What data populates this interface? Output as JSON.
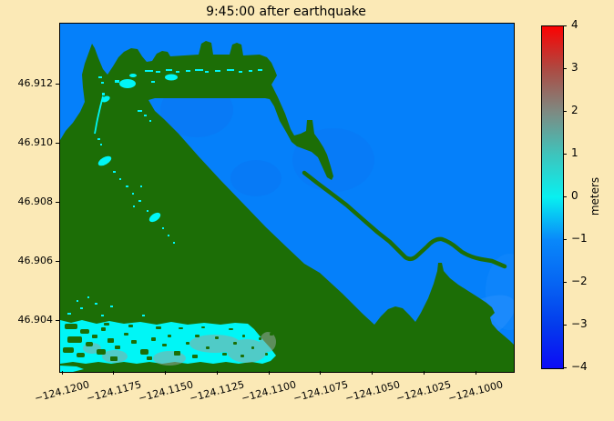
{
  "title": "9:45:00 after earthquake",
  "axes": {
    "x_tick_labels": [
      "−124.1200",
      "−124.1175",
      "−124.1150",
      "−124.1125",
      "−124.1100",
      "−124.1075",
      "−124.1050",
      "−124.1025",
      "−124.1000"
    ],
    "y_tick_labels": [
      "46.912",
      "46.910",
      "46.908",
      "46.906",
      "46.904"
    ]
  },
  "colorbar": {
    "tick_labels": [
      "4",
      "3",
      "2",
      "1",
      "0",
      "−1",
      "−2",
      "−3",
      "−4"
    ],
    "label": "meters"
  },
  "colors": {
    "background": "#fbe9b6",
    "ocean": "#0580fa",
    "land": "#1c6e06",
    "flood_cyan": "#00f6f6",
    "flood_gray": "#93a8a2",
    "colorbar_top_red": "#fb0202",
    "colorbar_mid_gray": "#7e8a82",
    "colorbar_zero_cyan": "#08f0f0",
    "colorbar_bottom_blue": "#0c0cf6"
  },
  "chart_data": {
    "type": "heatmap",
    "title": "9:45:00 after earthquake",
    "xlabel": "",
    "ylabel": "",
    "x_tick_labels": [
      "−124.1200",
      "−124.1175",
      "−124.1150",
      "−124.1125",
      "−124.1100",
      "−124.1075",
      "−124.1050",
      "−124.1025",
      "−124.1000"
    ],
    "y_tick_labels": [
      "46.912",
      "46.910",
      "46.908",
      "46.906",
      "46.904"
    ],
    "x_range": [
      -124.1202,
      -124.0982
    ],
    "y_range": [
      46.9022,
      46.9142
    ],
    "grid": false,
    "legend_position": "right-colorbar",
    "colorbar": {
      "label": "meters",
      "min": -4,
      "max": 4,
      "tick_step": 1
    },
    "value_encoding": {
      "bright_blue": "water surface approx -1 to -2 m",
      "cyan": "shallow / flooded cells approx 0 m",
      "dark_green": "dry land (masked)",
      "red_end": "+4 m",
      "blue_end": "-4 m"
    },
    "features": [
      "coastal spit at upper left with pointed arm and shore bar with four groin bumps along the top",
      "harbor basin of open water in the center-right bounded by a diagonal shoreline",
      "thin curved jetty/breakwater arcing through the harbor toward the southeast",
      "hooked land finger at the harbor entrance near the top center-right",
      "wide flooded band (cyan with green speckles and gray patches) along the bottom-left shore near latitude 46.904",
      "triangular peninsula in the bottom-right reaching the plot edge"
    ]
  }
}
